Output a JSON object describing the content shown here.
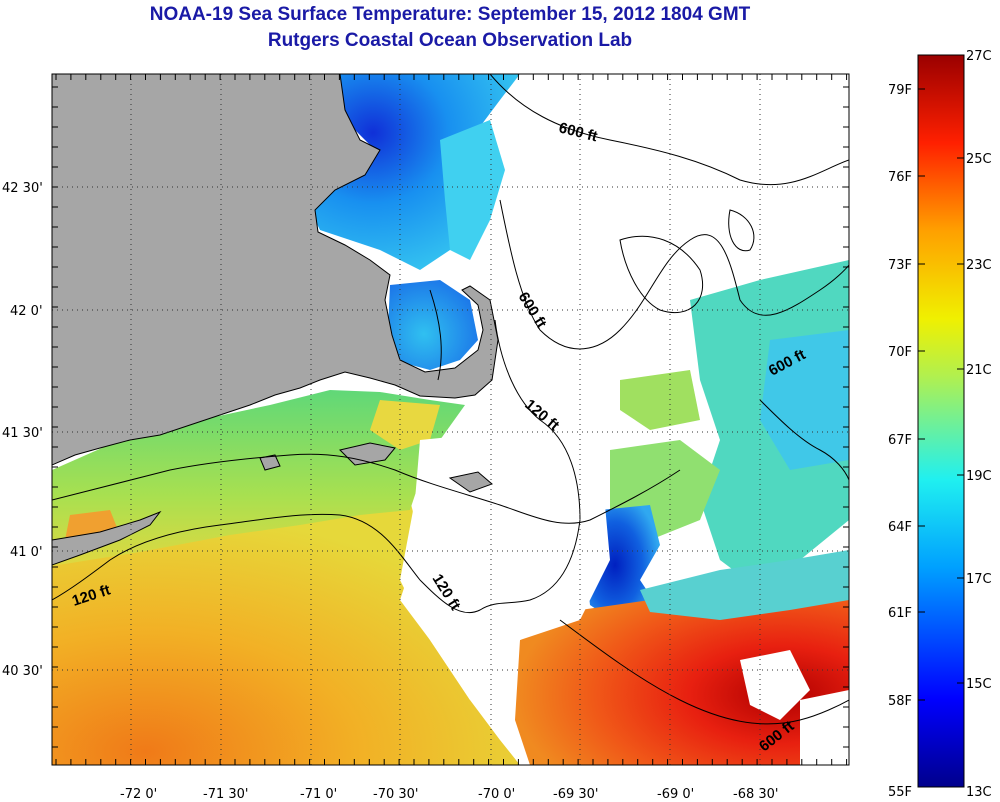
{
  "title": {
    "line1": "NOAA-19 Sea Surface Temperature:  September 15, 2012 1804 GMT",
    "line2": "Rutgers Coastal Ocean Observation Lab"
  },
  "axes": {
    "x_ticks": [
      "-72 0'",
      "-71 30'",
      "-71 0'",
      "-70 30'",
      "-70 0'",
      "-69 30'",
      "-69 0'",
      "-68 30'"
    ],
    "y_ticks": [
      "42 30'",
      "42 0'",
      "41 30'",
      "41 0'",
      "40 30'"
    ]
  },
  "contours": {
    "labels": [
      "600 ft",
      "600 ft",
      "600 ft",
      "120 ft",
      "120 ft",
      "120 ft",
      "600 ft"
    ]
  },
  "colorbar": {
    "fahrenheit": [
      "79F",
      "76F",
      "73F",
      "70F",
      "67F",
      "64F",
      "61F",
      "58F",
      "55F"
    ],
    "celsius": [
      "27C",
      "25C",
      "23C",
      "21C",
      "19C",
      "17C",
      "15C",
      "13C"
    ]
  },
  "colors": {
    "land": "#a6a6a6",
    "title": "#1a1aa6",
    "cold": "#0000a0",
    "warm": "#a00000"
  }
}
